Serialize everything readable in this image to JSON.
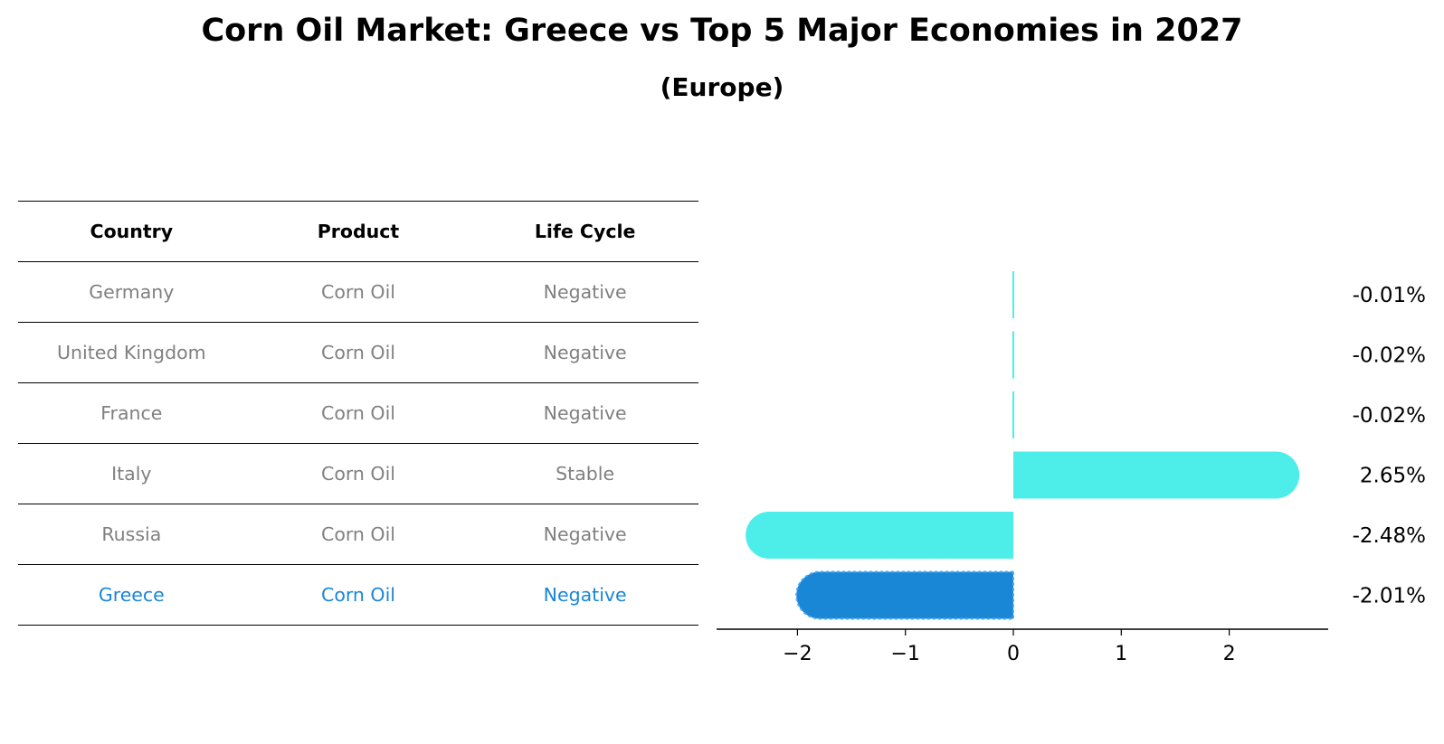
{
  "title": "Corn Oil Market: Greece vs Top 5 Major Economies in 2027",
  "subtitle": "(Europe)",
  "table": {
    "headers": [
      "Country",
      "Product",
      "Life Cycle"
    ],
    "rows": [
      {
        "country": "Germany",
        "product": "Corn Oil",
        "life_cycle": "Negative"
      },
      {
        "country": "United Kingdom",
        "product": "Corn Oil",
        "life_cycle": "Negative"
      },
      {
        "country": "France",
        "product": "Corn Oil",
        "life_cycle": "Negative"
      },
      {
        "country": "Italy",
        "product": "Corn Oil",
        "life_cycle": "Stable"
      },
      {
        "country": "Russia",
        "product": "Corn Oil",
        "life_cycle": "Negative"
      },
      {
        "country": "Greece",
        "product": "Corn Oil",
        "life_cycle": "Negative"
      }
    ],
    "highlight_color": "#1a86d6",
    "text_color": "#808080"
  },
  "chart_data": {
    "type": "bar",
    "orientation": "horizontal",
    "categories": [
      "Germany",
      "United Kingdom",
      "France",
      "Italy",
      "Russia",
      "Greece"
    ],
    "values": [
      -0.01,
      -0.02,
      -0.02,
      2.65,
      -2.48,
      -2.01
    ],
    "value_labels": [
      "-0.01%",
      "-0.02%",
      "-0.02%",
      "2.65%",
      "-2.48%",
      "-2.01%"
    ],
    "xticks": [
      -2,
      -1,
      0,
      1,
      2
    ],
    "xtick_labels": [
      "−2",
      "−1",
      "0",
      "1",
      "2"
    ],
    "xlim": [
      -2.7,
      2.9
    ],
    "bar_color": "#4deeea",
    "highlight_color": "#1a86d6",
    "highlight_index": 5,
    "grid": false
  }
}
